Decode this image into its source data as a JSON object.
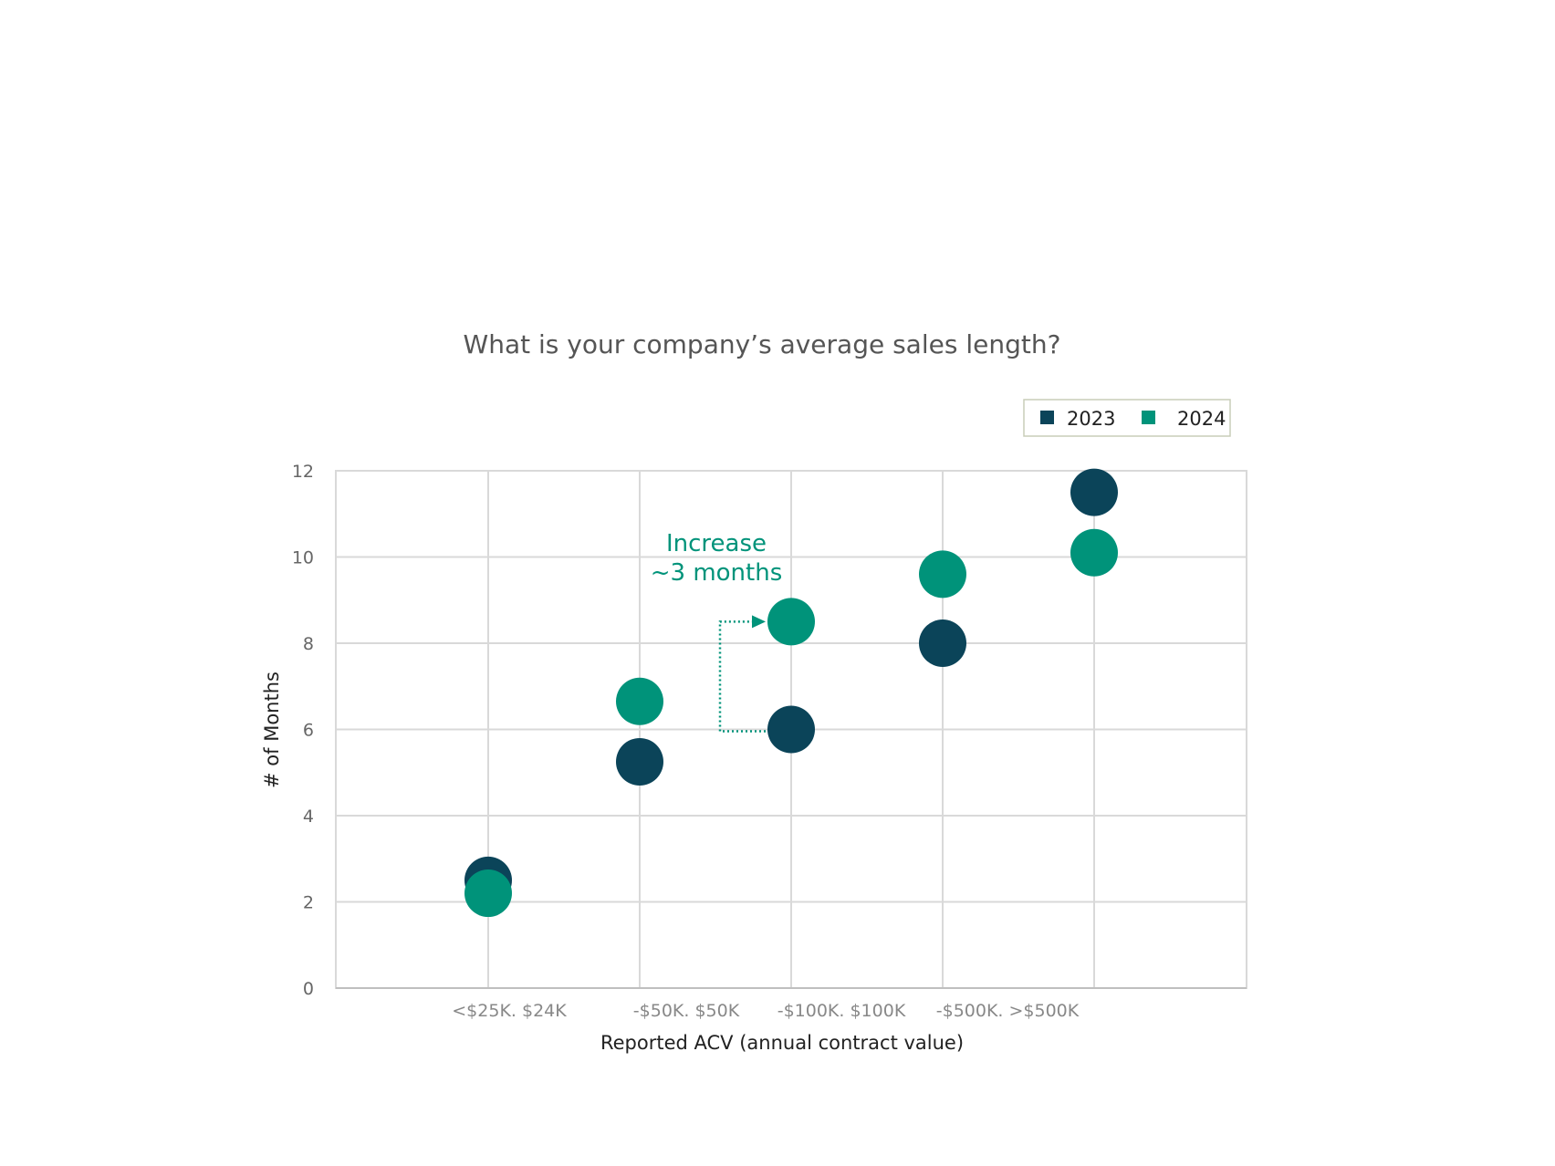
{
  "chart_data": {
    "type": "scatter",
    "title": "What is your company’s average sales length?",
    "xlabel": "Reported ACV (annual contract value)",
    "ylabel": "# of Months",
    "ylim": [
      0,
      12
    ],
    "yticks": [
      0,
      2,
      4,
      6,
      8,
      10,
      12
    ],
    "categories": [
      "<$25K",
      "$24K-$50K",
      "$50K-$100K",
      "$100K-$500K",
      ">$500K"
    ],
    "xtick_labels_as_printed": [
      "<$25K. $24K",
      "-$50K. $50K",
      "-$100K. $100K",
      "-$500K. >$500K"
    ],
    "series": [
      {
        "name": "2023",
        "color": "#0b4459",
        "values": [
          2.5,
          5.25,
          6.0,
          8.0,
          11.5
        ]
      },
      {
        "name": "2024",
        "color": "#00937a",
        "values": [
          2.2,
          6.65,
          8.5,
          9.6,
          10.1
        ]
      }
    ],
    "grid": true,
    "legend_position": "top-right",
    "annotation": {
      "lines": [
        "Increase",
        "~3 months"
      ],
      "color": "#00937a",
      "category": "$50K-$100K"
    }
  }
}
